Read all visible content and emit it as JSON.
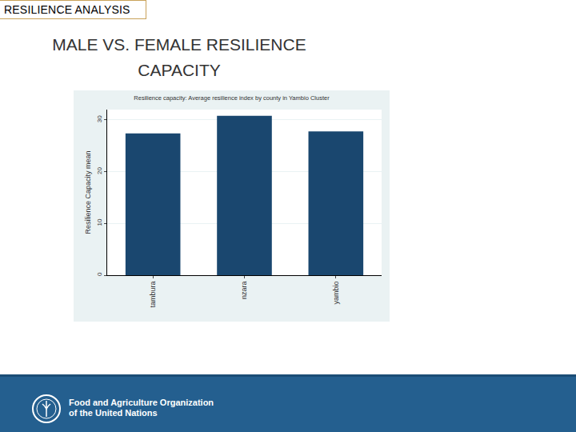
{
  "slide": {
    "header": "RESILIENCE ANALYSIS",
    "title": "MALE VS. FEMALE RESILIENCE CAPACITY",
    "footer_lines": [
      "Food and Agriculture Organization",
      "of the United Nations"
    ]
  },
  "chart_data": {
    "type": "bar",
    "title": "Resilience capacity: Average resilience index by county in Yambio Cluster",
    "y_label": "Resilience Capacity mean",
    "categories": [
      "tambura",
      "nzara",
      "yambio"
    ],
    "values": [
      27.4,
      30.8,
      27.8
    ],
    "color": "#1a476f",
    "ylim": [
      0,
      32
    ],
    "yticks": [
      0,
      10,
      20,
      30
    ],
    "grid": true
  }
}
